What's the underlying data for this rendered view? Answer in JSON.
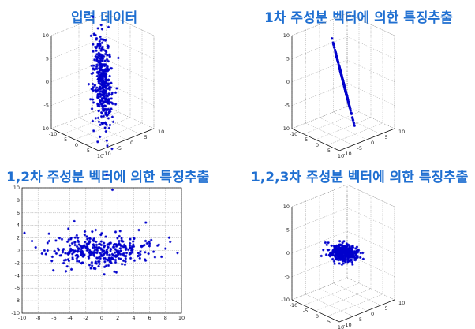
{
  "colors": {
    "title": "#1f6fd1",
    "marker": "#0000cc"
  },
  "chart_data": [
    {
      "type": "scatter",
      "projection": "3d",
      "title": "입력 데이터",
      "grid": true,
      "xlim": [
        -10,
        10
      ],
      "ylim": [
        -10,
        10
      ],
      "zlim": [
        -10,
        10
      ],
      "x_ticks": [
        "10",
        "5",
        "0",
        "-5",
        "-10"
      ],
      "y_ticks": [
        "10",
        "5",
        "0",
        "-5",
        "-10"
      ],
      "z_ticks": [
        "10",
        "5",
        "0",
        "-5",
        "-10"
      ],
      "description": "dense elongated cloud of about 500 points, spread mostly along z",
      "points": [
        [
          1.0,
          -2.0,
          8.0
        ],
        [
          0.8,
          -1.5,
          6.5
        ],
        [
          0.3,
          -1.0,
          5.0
        ],
        [
          0.1,
          -0.5,
          3.8
        ],
        [
          -0.3,
          0.0,
          2.5
        ],
        [
          -0.5,
          0.3,
          1.5
        ],
        [
          -0.7,
          0.7,
          0.5
        ],
        [
          -1.0,
          1.0,
          -0.5
        ],
        [
          -1.3,
          1.4,
          -1.5
        ],
        [
          -1.5,
          1.8,
          -2.5
        ],
        [
          -1.8,
          2.2,
          -3.5
        ],
        [
          -2.0,
          2.5,
          -4.5
        ],
        [
          -2.3,
          2.9,
          -5.5
        ],
        [
          -2.5,
          3.2,
          -6.5
        ],
        [
          -2.8,
          3.6,
          -7.5
        ],
        [
          0.5,
          -0.5,
          4.0
        ],
        [
          -0.9,
          0.5,
          -1.0
        ],
        [
          -1.6,
          2.5,
          -3.0
        ],
        [
          0.6,
          -1.8,
          1.5
        ],
        [
          -2.0,
          0.8,
          -2.2
        ],
        [
          1.2,
          -0.4,
          3.0
        ],
        [
          -0.4,
          1.6,
          -4.0
        ]
      ]
    },
    {
      "type": "scatter",
      "projection": "3d",
      "title": "1차 주성분 벡터에 의한 특징추출",
      "grid": true,
      "xlim": [
        -10,
        10
      ],
      "ylim": [
        -10,
        10
      ],
      "zlim": [
        -10,
        10
      ],
      "x_ticks": [
        "10",
        "5",
        "0",
        "-5",
        "-10"
      ],
      "y_ticks": [
        "10",
        "5",
        "0",
        "-5",
        "-10"
      ],
      "z_ticks": [
        "10",
        "5",
        "0",
        "-5",
        "-10"
      ],
      "description": "all points collapsed onto a single straight line (1st principal axis)",
      "points": [
        [
          -3.0,
          -1.5,
          9.0
        ],
        [
          -2.6,
          -1.3,
          7.8
        ],
        [
          -2.2,
          -1.1,
          6.6
        ],
        [
          -1.8,
          -0.9,
          5.4
        ],
        [
          -1.4,
          -0.7,
          4.2
        ],
        [
          -1.0,
          -0.5,
          3.0
        ],
        [
          -0.6,
          -0.3,
          1.8
        ],
        [
          -0.2,
          -0.1,
          0.6
        ],
        [
          0.2,
          0.1,
          -0.6
        ],
        [
          0.6,
          0.3,
          -1.8
        ],
        [
          1.0,
          0.5,
          -3.0
        ],
        [
          1.4,
          0.7,
          -4.2
        ],
        [
          1.8,
          0.9,
          -5.4
        ],
        [
          2.2,
          1.1,
          -6.6
        ],
        [
          2.6,
          1.3,
          -7.8
        ],
        [
          3.0,
          1.5,
          -9.0
        ]
      ]
    },
    {
      "type": "scatter",
      "projection": "2d",
      "title": "1,2차 주성분 벡터에 의한 특징추출",
      "grid": true,
      "xlim": [
        -10,
        10
      ],
      "ylim": [
        -10,
        10
      ],
      "x_ticks": [
        "-10",
        "-8",
        "-6",
        "-4",
        "-2",
        "0",
        "2",
        "4",
        "6",
        "8",
        "10"
      ],
      "y_ticks": [
        "10",
        "8",
        "6",
        "4",
        "2",
        "0",
        "-2",
        "-4",
        "-6",
        "-8",
        "-10"
      ],
      "description": "projection on first two principal components, wide horizontal ellipse",
      "points": [
        [
          -9.7,
          2.8
        ],
        [
          -8.3,
          0.5
        ],
        [
          -7.5,
          -0.5
        ],
        [
          -6.8,
          1.2
        ],
        [
          -6.2,
          -1.0
        ],
        [
          -5.5,
          0.3
        ],
        [
          -5.0,
          1.8
        ],
        [
          -4.5,
          -1.5
        ],
        [
          -4.0,
          0.8
        ],
        [
          -3.5,
          -0.3
        ],
        [
          -3.0,
          2.0
        ],
        [
          -2.5,
          -2.0
        ],
        [
          -2.0,
          0.5
        ],
        [
          -1.5,
          -0.8
        ],
        [
          -1.0,
          1.5
        ],
        [
          -0.5,
          -1.2
        ],
        [
          0.0,
          0.2
        ],
        [
          0.5,
          2.2
        ],
        [
          1.0,
          -1.8
        ],
        [
          1.5,
          0.9
        ],
        [
          2.0,
          -0.4
        ],
        [
          2.5,
          1.6
        ],
        [
          3.0,
          -1.3
        ],
        [
          3.5,
          0.4
        ],
        [
          4.0,
          2.0
        ],
        [
          4.5,
          -0.9
        ],
        [
          5.0,
          0.6
        ],
        [
          5.5,
          -1.6
        ],
        [
          6.0,
          1.1
        ],
        [
          6.5,
          -0.2
        ],
        [
          7.0,
          0.8
        ],
        [
          7.5,
          -1.0
        ],
        [
          8.0,
          0.3
        ],
        [
          9.5,
          -0.4
        ],
        [
          -3.8,
          -3.0
        ],
        [
          0.3,
          -3.8
        ],
        [
          -1.2,
          3.0
        ],
        [
          2.3,
          3.1
        ],
        [
          -0.8,
          -2.9
        ]
      ]
    },
    {
      "type": "scatter",
      "projection": "3d",
      "title": "1,2,3차 주성분 벡터에 의한 특징추출",
      "grid": true,
      "xlim": [
        -10,
        10
      ],
      "ylim": [
        -10,
        10
      ],
      "zlim": [
        -10,
        10
      ],
      "x_ticks": [
        "10",
        "5",
        "0",
        "-5",
        "-10"
      ],
      "y_ticks": [
        "10",
        "5",
        "0",
        "-5",
        "-10"
      ],
      "z_ticks": [
        "10",
        "5",
        "0",
        "-5",
        "-10"
      ],
      "description": "full 3-component projection, flat elongated cloud lying near z=0",
      "points": [
        [
          -6.0,
          -1.0,
          -1.5
        ],
        [
          -5.0,
          0.5,
          -1.0
        ],
        [
          -4.0,
          -0.8,
          -0.8
        ],
        [
          -3.0,
          0.6,
          -0.5
        ],
        [
          -2.0,
          -0.4,
          -0.3
        ],
        [
          -1.0,
          0.3,
          0.0
        ],
        [
          0.0,
          -0.2,
          0.2
        ],
        [
          1.0,
          0.4,
          0.3
        ],
        [
          2.0,
          -0.5,
          0.5
        ],
        [
          3.0,
          0.7,
          0.6
        ],
        [
          4.0,
          -0.3,
          0.8
        ],
        [
          5.0,
          0.2,
          1.0
        ],
        [
          6.0,
          -0.6,
          1.2
        ],
        [
          -7.5,
          -1.5,
          -2.0
        ],
        [
          -3.5,
          2.0,
          0.5
        ],
        [
          1.5,
          -2.0,
          -0.5
        ],
        [
          3.5,
          1.5,
          1.5
        ],
        [
          -1.5,
          -1.5,
          -1.2
        ]
      ]
    }
  ]
}
